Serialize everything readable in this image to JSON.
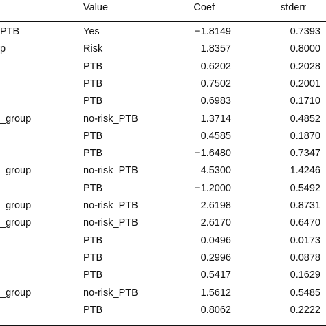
{
  "table": {
    "headers": [
      "Value",
      "Coef",
      "stderr"
    ],
    "rows": [
      {
        "variable": "PTB",
        "value": "Yes",
        "coef": "−1.8149",
        "stderr": "0.7393"
      },
      {
        "variable": "p",
        "value": "Risk",
        "coef": "1.8357",
        "stderr": "0.8000"
      },
      {
        "variable": "",
        "value": "PTB",
        "coef": "0.6202",
        "stderr": "0.2028"
      },
      {
        "variable": "",
        "value": "PTB",
        "coef": "0.7502",
        "stderr": "0.2001"
      },
      {
        "variable": "",
        "value": "PTB",
        "coef": "0.6983",
        "stderr": "0.1710"
      },
      {
        "variable": "_group",
        "value": "no-risk_PTB",
        "coef": "1.3714",
        "stderr": "0.4852"
      },
      {
        "variable": "",
        "value": "PTB",
        "coef": "0.4585",
        "stderr": "0.1870"
      },
      {
        "variable": "",
        "value": "PTB",
        "coef": "−1.6480",
        "stderr": "0.7347"
      },
      {
        "variable": "_group",
        "value": "no-risk_PTB",
        "coef": "4.5300",
        "stderr": "1.4246"
      },
      {
        "variable": "",
        "value": "PTB",
        "coef": "−1.2000",
        "stderr": "0.5492"
      },
      {
        "variable": "_group",
        "value": "no-risk_PTB",
        "coef": "2.6198",
        "stderr": "0.8731"
      },
      {
        "variable": "_group",
        "value": "no-risk_PTB",
        "coef": "2.6170",
        "stderr": "0.6470"
      },
      {
        "variable": "",
        "value": "PTB",
        "coef": "0.0496",
        "stderr": "0.0173"
      },
      {
        "variable": "",
        "value": "PTB",
        "coef": "0.2996",
        "stderr": "0.0878"
      },
      {
        "variable": "",
        "value": "PTB",
        "coef": "0.5417",
        "stderr": "0.1629"
      },
      {
        "variable": "_group",
        "value": "no-risk_PTB",
        "coef": "1.5612",
        "stderr": "0.5485"
      },
      {
        "variable": "",
        "value": "PTB",
        "coef": "0.8062",
        "stderr": "0.2222"
      }
    ]
  }
}
